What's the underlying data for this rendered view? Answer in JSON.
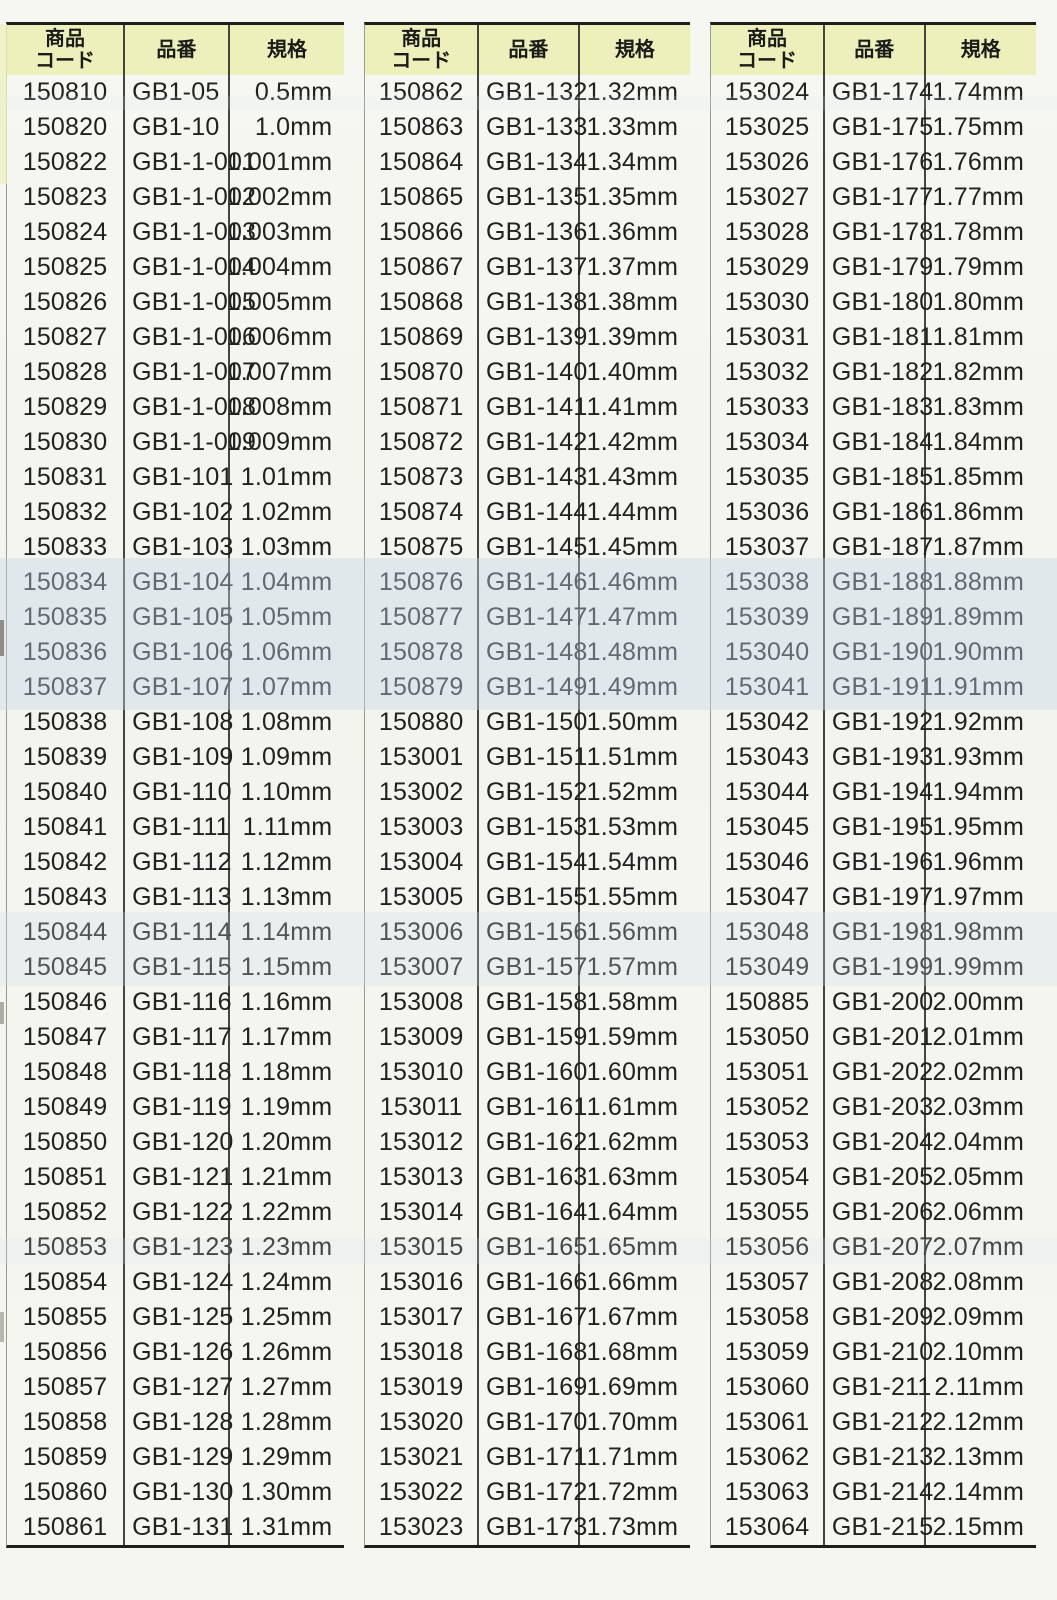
{
  "colors": {
    "header_bg": "#eef0bc",
    "border_dark": "#1d1d1b",
    "text": "#21211f"
  },
  "header": {
    "col1_line1": "商品",
    "col1_line2": "コード",
    "col2": "品番",
    "col3": "規格"
  },
  "columns": [
    "商品コード",
    "品番",
    "規格"
  ],
  "tables": [
    {
      "rows": [
        [
          "150810",
          "GB1-05",
          "0.5mm"
        ],
        [
          "150820",
          "GB1-10",
          "1.0mm"
        ],
        [
          "150822",
          "GB1-1-001",
          "1.001mm"
        ],
        [
          "150823",
          "GB1-1-002",
          "1.002mm"
        ],
        [
          "150824",
          "GB1-1-003",
          "1.003mm"
        ],
        [
          "150825",
          "GB1-1-004",
          "1.004mm"
        ],
        [
          "150826",
          "GB1-1-005",
          "1.005mm"
        ],
        [
          "150827",
          "GB1-1-006",
          "1.006mm"
        ],
        [
          "150828",
          "GB1-1-007",
          "1.007mm"
        ],
        [
          "150829",
          "GB1-1-008",
          "1.008mm"
        ],
        [
          "150830",
          "GB1-1-009",
          "1.009mm"
        ],
        [
          "150831",
          "GB1-101",
          "1.01mm"
        ],
        [
          "150832",
          "GB1-102",
          "1.02mm"
        ],
        [
          "150833",
          "GB1-103",
          "1.03mm"
        ],
        [
          "150834",
          "GB1-104",
          "1.04mm"
        ],
        [
          "150835",
          "GB1-105",
          "1.05mm"
        ],
        [
          "150836",
          "GB1-106",
          "1.06mm"
        ],
        [
          "150837",
          "GB1-107",
          "1.07mm"
        ],
        [
          "150838",
          "GB1-108",
          "1.08mm"
        ],
        [
          "150839",
          "GB1-109",
          "1.09mm"
        ],
        [
          "150840",
          "GB1-110",
          "1.10mm"
        ],
        [
          "150841",
          "GB1-111",
          "1.11mm"
        ],
        [
          "150842",
          "GB1-112",
          "1.12mm"
        ],
        [
          "150843",
          "GB1-113",
          "1.13mm"
        ],
        [
          "150844",
          "GB1-114",
          "1.14mm"
        ],
        [
          "150845",
          "GB1-115",
          "1.15mm"
        ],
        [
          "150846",
          "GB1-116",
          "1.16mm"
        ],
        [
          "150847",
          "GB1-117",
          "1.17mm"
        ],
        [
          "150848",
          "GB1-118",
          "1.18mm"
        ],
        [
          "150849",
          "GB1-119",
          "1.19mm"
        ],
        [
          "150850",
          "GB1-120",
          "1.20mm"
        ],
        [
          "150851",
          "GB1-121",
          "1.21mm"
        ],
        [
          "150852",
          "GB1-122",
          "1.22mm"
        ],
        [
          "150853",
          "GB1-123",
          "1.23mm"
        ],
        [
          "150854",
          "GB1-124",
          "1.24mm"
        ],
        [
          "150855",
          "GB1-125",
          "1.25mm"
        ],
        [
          "150856",
          "GB1-126",
          "1.26mm"
        ],
        [
          "150857",
          "GB1-127",
          "1.27mm"
        ],
        [
          "150858",
          "GB1-128",
          "1.28mm"
        ],
        [
          "150859",
          "GB1-129",
          "1.29mm"
        ],
        [
          "150860",
          "GB1-130",
          "1.30mm"
        ],
        [
          "150861",
          "GB1-131",
          "1.31mm"
        ]
      ]
    },
    {
      "rows": [
        [
          "150862",
          "GB1-132",
          "1.32mm"
        ],
        [
          "150863",
          "GB1-133",
          "1.33mm"
        ],
        [
          "150864",
          "GB1-134",
          "1.34mm"
        ],
        [
          "150865",
          "GB1-135",
          "1.35mm"
        ],
        [
          "150866",
          "GB1-136",
          "1.36mm"
        ],
        [
          "150867",
          "GB1-137",
          "1.37mm"
        ],
        [
          "150868",
          "GB1-138",
          "1.38mm"
        ],
        [
          "150869",
          "GB1-139",
          "1.39mm"
        ],
        [
          "150870",
          "GB1-140",
          "1.40mm"
        ],
        [
          "150871",
          "GB1-141",
          "1.41mm"
        ],
        [
          "150872",
          "GB1-142",
          "1.42mm"
        ],
        [
          "150873",
          "GB1-143",
          "1.43mm"
        ],
        [
          "150874",
          "GB1-144",
          "1.44mm"
        ],
        [
          "150875",
          "GB1-145",
          "1.45mm"
        ],
        [
          "150876",
          "GB1-146",
          "1.46mm"
        ],
        [
          "150877",
          "GB1-147",
          "1.47mm"
        ],
        [
          "150878",
          "GB1-148",
          "1.48mm"
        ],
        [
          "150879",
          "GB1-149",
          "1.49mm"
        ],
        [
          "150880",
          "GB1-150",
          "1.50mm"
        ],
        [
          "153001",
          "GB1-151",
          "1.51mm"
        ],
        [
          "153002",
          "GB1-152",
          "1.52mm"
        ],
        [
          "153003",
          "GB1-153",
          "1.53mm"
        ],
        [
          "153004",
          "GB1-154",
          "1.54mm"
        ],
        [
          "153005",
          "GB1-155",
          "1.55mm"
        ],
        [
          "153006",
          "GB1-156",
          "1.56mm"
        ],
        [
          "153007",
          "GB1-157",
          "1.57mm"
        ],
        [
          "153008",
          "GB1-158",
          "1.58mm"
        ],
        [
          "153009",
          "GB1-159",
          "1.59mm"
        ],
        [
          "153010",
          "GB1-160",
          "1.60mm"
        ],
        [
          "153011",
          "GB1-161",
          "1.61mm"
        ],
        [
          "153012",
          "GB1-162",
          "1.62mm"
        ],
        [
          "153013",
          "GB1-163",
          "1.63mm"
        ],
        [
          "153014",
          "GB1-164",
          "1.64mm"
        ],
        [
          "153015",
          "GB1-165",
          "1.65mm"
        ],
        [
          "153016",
          "GB1-166",
          "1.66mm"
        ],
        [
          "153017",
          "GB1-167",
          "1.67mm"
        ],
        [
          "153018",
          "GB1-168",
          "1.68mm"
        ],
        [
          "153019",
          "GB1-169",
          "1.69mm"
        ],
        [
          "153020",
          "GB1-170",
          "1.70mm"
        ],
        [
          "153021",
          "GB1-171",
          "1.71mm"
        ],
        [
          "153022",
          "GB1-172",
          "1.72mm"
        ],
        [
          "153023",
          "GB1-173",
          "1.73mm"
        ]
      ]
    },
    {
      "rows": [
        [
          "153024",
          "GB1-174",
          "1.74mm"
        ],
        [
          "153025",
          "GB1-175",
          "1.75mm"
        ],
        [
          "153026",
          "GB1-176",
          "1.76mm"
        ],
        [
          "153027",
          "GB1-177",
          "1.77mm"
        ],
        [
          "153028",
          "GB1-178",
          "1.78mm"
        ],
        [
          "153029",
          "GB1-179",
          "1.79mm"
        ],
        [
          "153030",
          "GB1-180",
          "1.80mm"
        ],
        [
          "153031",
          "GB1-181",
          "1.81mm"
        ],
        [
          "153032",
          "GB1-182",
          "1.82mm"
        ],
        [
          "153033",
          "GB1-183",
          "1.83mm"
        ],
        [
          "153034",
          "GB1-184",
          "1.84mm"
        ],
        [
          "153035",
          "GB1-185",
          "1.85mm"
        ],
        [
          "153036",
          "GB1-186",
          "1.86mm"
        ],
        [
          "153037",
          "GB1-187",
          "1.87mm"
        ],
        [
          "153038",
          "GB1-188",
          "1.88mm"
        ],
        [
          "153039",
          "GB1-189",
          "1.89mm"
        ],
        [
          "153040",
          "GB1-190",
          "1.90mm"
        ],
        [
          "153041",
          "GB1-191",
          "1.91mm"
        ],
        [
          "153042",
          "GB1-192",
          "1.92mm"
        ],
        [
          "153043",
          "GB1-193",
          "1.93mm"
        ],
        [
          "153044",
          "GB1-194",
          "1.94mm"
        ],
        [
          "153045",
          "GB1-195",
          "1.95mm"
        ],
        [
          "153046",
          "GB1-196",
          "1.96mm"
        ],
        [
          "153047",
          "GB1-197",
          "1.97mm"
        ],
        [
          "153048",
          "GB1-198",
          "1.98mm"
        ],
        [
          "153049",
          "GB1-199",
          "1.99mm"
        ],
        [
          "150885",
          "GB1-200",
          "2.00mm"
        ],
        [
          "153050",
          "GB1-201",
          "2.01mm"
        ],
        [
          "153051",
          "GB1-202",
          "2.02mm"
        ],
        [
          "153052",
          "GB1-203",
          "2.03mm"
        ],
        [
          "153053",
          "GB1-204",
          "2.04mm"
        ],
        [
          "153054",
          "GB1-205",
          "2.05mm"
        ],
        [
          "153055",
          "GB1-206",
          "2.06mm"
        ],
        [
          "153056",
          "GB1-207",
          "2.07mm"
        ],
        [
          "153057",
          "GB1-208",
          "2.08mm"
        ],
        [
          "153058",
          "GB1-209",
          "2.09mm"
        ],
        [
          "153059",
          "GB1-210",
          "2.10mm"
        ],
        [
          "153060",
          "GB1-211",
          "2.11mm"
        ],
        [
          "153061",
          "GB1-212",
          "2.12mm"
        ],
        [
          "153062",
          "GB1-213",
          "2.13mm"
        ],
        [
          "153063",
          "GB1-214",
          "2.14mm"
        ],
        [
          "153064",
          "GB1-215",
          "2.15mm"
        ]
      ]
    }
  ]
}
